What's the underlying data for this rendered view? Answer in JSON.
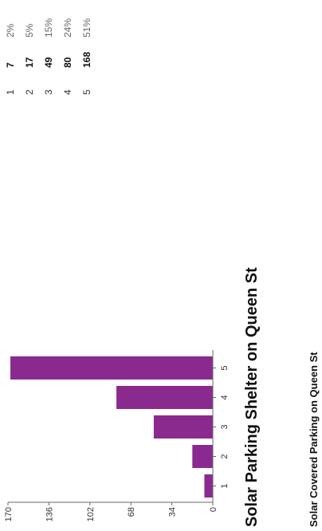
{
  "page": {
    "heading": "Solar Parking Shelter on Queen St",
    "subheading": "Solar Covered Parking on Queen St"
  },
  "chart_data": {
    "type": "bar",
    "categories": [
      "1",
      "2",
      "3",
      "4",
      "5"
    ],
    "values": [
      7,
      17,
      49,
      80,
      168
    ],
    "ylim": [
      0,
      170
    ],
    "yticks": [
      0,
      34,
      68,
      102,
      136,
      170
    ],
    "bar_color": "#8b2a8e",
    "grid": false,
    "title": "",
    "xlabel": "",
    "ylabel": ""
  },
  "summary": {
    "rows": [
      {
        "rank": "1",
        "count": "7",
        "percent": "2%"
      },
      {
        "rank": "2",
        "count": "17",
        "percent": "5%"
      },
      {
        "rank": "3",
        "count": "49",
        "percent": "15%"
      },
      {
        "rank": "4",
        "count": "80",
        "percent": "24%"
      },
      {
        "rank": "5",
        "count": "168",
        "percent": "51%"
      }
    ]
  }
}
